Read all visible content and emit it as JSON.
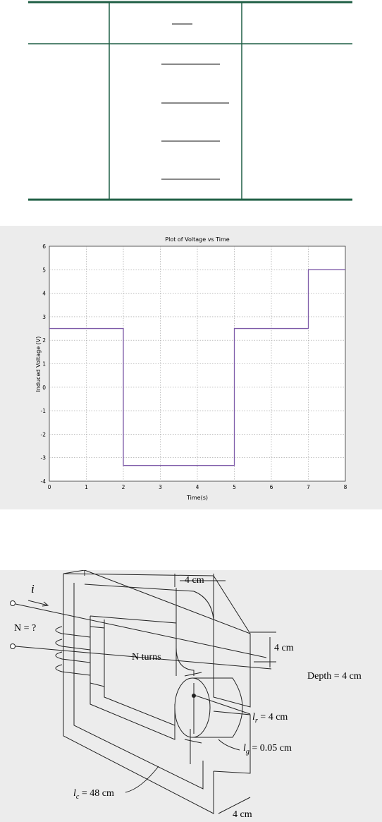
{
  "chart_data": {
    "type": "line",
    "title": "Plot of Voltage vs Time",
    "xlabel": "Time(s)",
    "ylabel": "Induced Voltage (V)",
    "xlim": [
      0,
      8
    ],
    "ylim": [
      -4,
      6
    ],
    "xticks": [
      "0",
      "1",
      "2",
      "3",
      "4",
      "5",
      "6",
      "7",
      "8"
    ],
    "yticks": [
      "-4",
      "-3",
      "-2",
      "-1",
      "0",
      "1",
      "2",
      "3",
      "4",
      "5",
      "6"
    ],
    "grid": true,
    "line_color": "#7d5aa8",
    "series": [
      {
        "x": [
          0,
          2,
          2,
          5,
          5,
          7,
          7,
          8
        ],
        "values": [
          2.5,
          2.5,
          -3.33,
          -3.33,
          2.5,
          2.5,
          5,
          5
        ]
      }
    ]
  },
  "figure": {
    "current_label": "i",
    "turns_question": "N = ?",
    "turns_label": "N turns",
    "width_top": "4 cm",
    "height_right": "4 cm",
    "depth_label": "Depth = 4 cm",
    "rotor_label": "l",
    "rotor_sub": "r",
    "rotor_value": " = 4 cm",
    "gap_label": "l",
    "gap_sub": "g",
    "gap_value": " = 0.05 cm",
    "core_label": "l",
    "core_sub": "c",
    "core_value": " = 48 cm",
    "width_bottom": "4 cm"
  },
  "colors": {
    "table_rule": "#1f5f45",
    "panel_bg": "#ececec",
    "grid": "#9a9a9a"
  }
}
